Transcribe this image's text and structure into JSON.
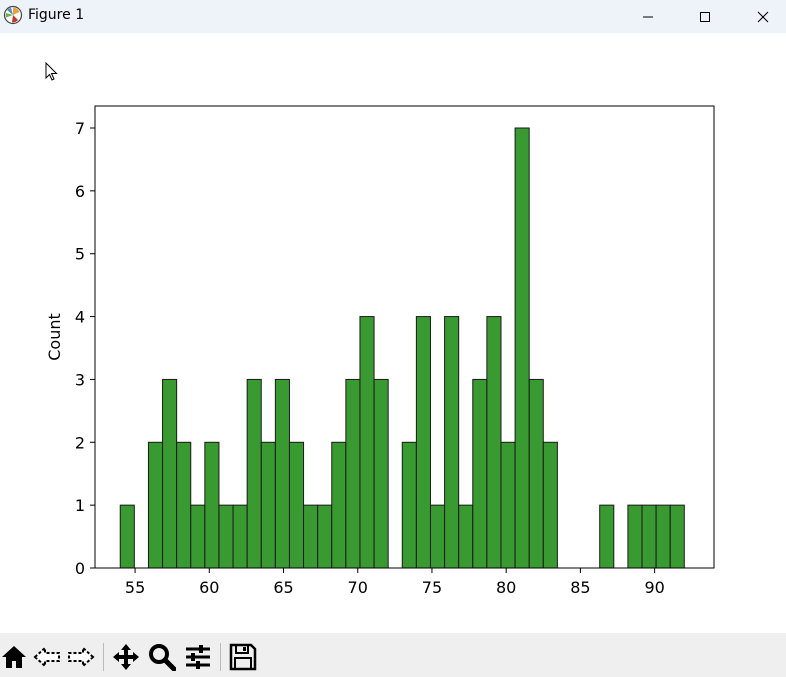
{
  "window": {
    "title": "Figure 1"
  },
  "toolbar": {
    "tools": [
      "home-icon",
      "back-icon",
      "forward-icon",
      "pan-icon",
      "zoom-icon",
      "configure-subplots-icon",
      "save-icon"
    ]
  },
  "colors": {
    "bar_fill": "#3a9a32",
    "bar_edge": "#1a1a1a",
    "titlebar_bg": "#eef3fa",
    "toolbar_bg": "#efefef"
  },
  "chart_data": {
    "type": "bar",
    "title": "",
    "xlabel": "",
    "ylabel": "Count",
    "xlim": [
      52.3,
      94.0
    ],
    "ylim": [
      0,
      7.35
    ],
    "xticks": [
      55,
      60,
      65,
      70,
      75,
      80,
      85,
      90
    ],
    "yticks": [
      0,
      1,
      2,
      3,
      4,
      5,
      6,
      7
    ],
    "bin_start": 54.0,
    "bin_width": 0.95,
    "values": [
      1,
      0,
      2,
      3,
      2,
      1,
      2,
      1,
      1,
      3,
      2,
      3,
      2,
      1,
      1,
      2,
      3,
      4,
      3,
      0,
      2,
      4,
      1,
      4,
      1,
      3,
      4,
      2,
      7,
      3,
      2,
      0,
      0,
      0,
      1,
      0,
      1,
      1,
      1,
      1
    ],
    "grid": false
  }
}
